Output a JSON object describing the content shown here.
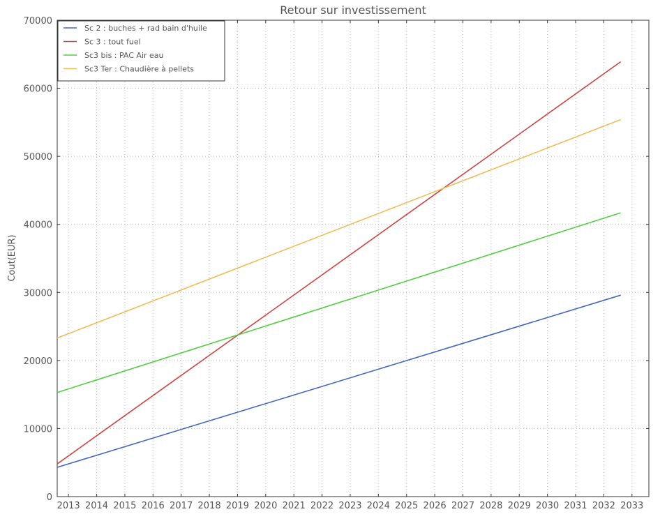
{
  "chart_data": {
    "type": "line",
    "title": "Retour sur investissement",
    "xlabel": "",
    "ylabel": "Cout(EUR)",
    "xlim": [
      2012.6,
      2033.6
    ],
    "ylim": [
      0,
      70000
    ],
    "xticks": [
      "2013",
      "2014",
      "2015",
      "2016",
      "2017",
      "2018",
      "2019",
      "2020",
      "2021",
      "2022",
      "2023",
      "2024",
      "2025",
      "2026",
      "2027",
      "2028",
      "2029",
      "2030",
      "2031",
      "2032",
      "2033"
    ],
    "yticks": [
      "0",
      "10000",
      "20000",
      "30000",
      "40000",
      "50000",
      "60000",
      "70000"
    ],
    "grid": true,
    "legend_position": "top-left",
    "series": [
      {
        "name": "Sc 2 : buches + rad bain d'huile",
        "color": "#4466bb",
        "x": [
          2012.6,
          2032.6
        ],
        "y": [
          4300,
          29600
        ]
      },
      {
        "name": "Sc 3 : tout fuel",
        "color": "#cc4444",
        "x": [
          2012.6,
          2032.6
        ],
        "y": [
          4800,
          63900
        ]
      },
      {
        "name": "Sc3 bis : PAC Air eau",
        "color": "#55cc44",
        "x": [
          2012.6,
          2032.6
        ],
        "y": [
          15300,
          41700
        ]
      },
      {
        "name": "Sc3 Ter : Chaudière à pellets",
        "color": "#eebb55",
        "x": [
          2012.6,
          2032.6
        ],
        "y": [
          23300,
          55400
        ]
      }
    ]
  }
}
